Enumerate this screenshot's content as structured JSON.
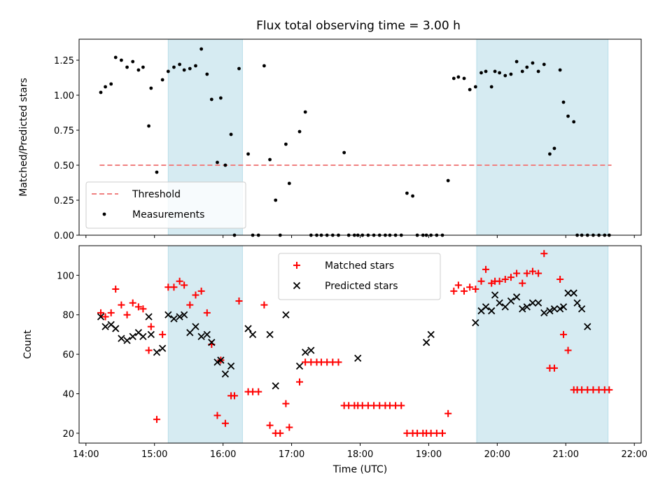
{
  "title": "Flux total observing time = 3.00 h",
  "chart_data": [
    {
      "type": "scatter",
      "ylabel": "Matched/Predicted stars",
      "xlim": [
        "14:00",
        "22:00"
      ],
      "ylim": [
        0,
        1.4
      ],
      "yticks": [
        "0.00",
        "0.25",
        "0.50",
        "0.75",
        "1.00",
        "1.25"
      ],
      "threshold": {
        "name": "Threshold",
        "value": 0.5,
        "x_range": [
          "14:12",
          "21:40"
        ],
        "color": "#f08080"
      },
      "shaded_intervals": [
        [
          "15:12",
          "16:17"
        ],
        [
          "19:42",
          "21:37"
        ]
      ],
      "series": [
        {
          "name": "Measurements",
          "color": "#000000",
          "x": [
            "14:13",
            "14:17",
            "14:22",
            "14:26",
            "14:31",
            "14:36",
            "14:41",
            "14:46",
            "14:50",
            "14:55",
            "14:57",
            "15:02",
            "15:07",
            "15:12",
            "15:17",
            "15:22",
            "15:26",
            "15:31",
            "15:36",
            "15:41",
            "15:46",
            "15:50",
            "15:55",
            "15:58",
            "16:02",
            "16:07",
            "16:10",
            "16:14",
            "16:22",
            "16:26",
            "16:31",
            "16:36",
            "16:41",
            "16:46",
            "16:50",
            "16:55",
            "16:58",
            "17:07",
            "17:12",
            "17:17",
            "17:22",
            "17:26",
            "17:31",
            "17:36",
            "17:41",
            "17:46",
            "17:50",
            "17:55",
            "17:58",
            "18:02",
            "18:07",
            "18:12",
            "18:17",
            "18:22",
            "18:26",
            "18:31",
            "18:36",
            "18:41",
            "18:46",
            "18:50",
            "18:55",
            "18:58",
            "19:02",
            "19:07",
            "19:12",
            "19:17",
            "19:22",
            "19:26",
            "19:31",
            "19:36",
            "19:41",
            "19:46",
            "19:50",
            "19:55",
            "19:58",
            "20:02",
            "20:07",
            "20:12",
            "20:17",
            "20:22",
            "20:26",
            "20:31",
            "20:36",
            "20:41",
            "20:46",
            "20:50",
            "20:55",
            "20:58",
            "21:02",
            "21:07",
            "21:10",
            "21:14",
            "21:19",
            "21:24",
            "21:29",
            "21:34",
            "21:38"
          ],
          "y": [
            1.02,
            1.06,
            1.08,
            1.27,
            1.25,
            1.2,
            1.24,
            1.18,
            1.2,
            0.78,
            1.05,
            0.45,
            1.11,
            1.17,
            1.2,
            1.22,
            1.18,
            1.19,
            1.21,
            1.33,
            1.15,
            0.97,
            0.52,
            0.98,
            0.5,
            0.72,
            0.0,
            1.19,
            0.58,
            0.0,
            0.0,
            1.21,
            0.54,
            0.25,
            0.0,
            0.65,
            0.37,
            0.74,
            0.88,
            0.0,
            0.0,
            0.0,
            0.0,
            0.0,
            0.0,
            0.59,
            0.0,
            0.0,
            0.0,
            0.0,
            0.0,
            0.0,
            0.0,
            0.0,
            0.0,
            0.0,
            0.0,
            0.3,
            0.28,
            0.0,
            0.0,
            0.0,
            0.0,
            0.0,
            0.0,
            0.39,
            1.12,
            1.13,
            1.12,
            1.04,
            1.06,
            1.16,
            1.17,
            1.06,
            1.17,
            1.16,
            1.14,
            1.15,
            1.24,
            1.17,
            1.2,
            1.23,
            1.17,
            1.22,
            0.58,
            0.62,
            1.18,
            0.95,
            0.85,
            0.81,
            0.0,
            0.0,
            0.0,
            0.0,
            0.0,
            0.0,
            0.0
          ]
        }
      ],
      "legend": "lower-left"
    },
    {
      "type": "scatter",
      "xlabel": "Time (UTC)",
      "ylabel": "Count",
      "xlim": [
        "14:00",
        "22:00"
      ],
      "xticks": [
        "14:00",
        "15:00",
        "16:00",
        "17:00",
        "18:00",
        "19:00",
        "20:00",
        "21:00",
        "22:00"
      ],
      "ylim": [
        15,
        115
      ],
      "yticks": [
        "20",
        "40",
        "60",
        "80",
        "100"
      ],
      "shaded_intervals": [
        [
          "15:12",
          "16:17"
        ],
        [
          "19:42",
          "21:37"
        ]
      ],
      "series": [
        {
          "name": "Matched stars",
          "color": "#ff0000",
          "marker": "plus",
          "x": [
            "14:13",
            "14:17",
            "14:22",
            "14:26",
            "14:31",
            "14:36",
            "14:41",
            "14:46",
            "14:50",
            "14:55",
            "14:57",
            "15:02",
            "15:07",
            "15:12",
            "15:17",
            "15:22",
            "15:26",
            "15:31",
            "15:36",
            "15:41",
            "15:46",
            "15:50",
            "15:55",
            "15:58",
            "16:02",
            "16:07",
            "16:10",
            "16:14",
            "16:22",
            "16:26",
            "16:31",
            "16:36",
            "16:41",
            "16:46",
            "16:50",
            "16:55",
            "16:58",
            "17:07",
            "17:12",
            "17:17",
            "17:22",
            "17:26",
            "17:31",
            "17:36",
            "17:41",
            "17:46",
            "17:50",
            "17:55",
            "17:58",
            "18:02",
            "18:07",
            "18:12",
            "18:17",
            "18:22",
            "18:26",
            "18:31",
            "18:36",
            "18:41",
            "18:46",
            "18:50",
            "18:55",
            "18:58",
            "19:02",
            "19:07",
            "19:12",
            "19:17",
            "19:22",
            "19:26",
            "19:31",
            "19:36",
            "19:41",
            "19:46",
            "19:50",
            "19:55",
            "19:58",
            "20:02",
            "20:07",
            "20:12",
            "20:17",
            "20:22",
            "20:26",
            "20:31",
            "20:36",
            "20:41",
            "20:46",
            "20:50",
            "20:55",
            "20:58",
            "21:02",
            "21:07",
            "21:10",
            "21:14",
            "21:19",
            "21:24",
            "21:29",
            "21:34",
            "21:38"
          ],
          "y": [
            81,
            79,
            81,
            93,
            85,
            80,
            86,
            84,
            83,
            62,
            74,
            27,
            70,
            94,
            94,
            97,
            95,
            85,
            90,
            92,
            81,
            65,
            29,
            57,
            25,
            39,
            39,
            87,
            41,
            41,
            41,
            85,
            24,
            20,
            20,
            35,
            23,
            46,
            56,
            56,
            56,
            56,
            56,
            56,
            56,
            34,
            34,
            34,
            34,
            34,
            34,
            34,
            34,
            34,
            34,
            34,
            34,
            20,
            20,
            20,
            20,
            20,
            20,
            20,
            20,
            30,
            92,
            95,
            92,
            94,
            93,
            97,
            103,
            96,
            97,
            97,
            98,
            99,
            101,
            96,
            101,
            102,
            101,
            111,
            53,
            53,
            98,
            70,
            62,
            42,
            42,
            42,
            42,
            42,
            42,
            42,
            42
          ]
        },
        {
          "name": "Predicted stars",
          "color": "#000000",
          "marker": "x",
          "x": [
            "14:13",
            "14:17",
            "14:22",
            "14:26",
            "14:31",
            "14:36",
            "14:41",
            "14:46",
            "14:50",
            "14:55",
            "14:57",
            "15:02",
            "15:07",
            "15:12",
            "15:17",
            "15:22",
            "15:26",
            "15:31",
            "15:36",
            "15:41",
            "15:46",
            "15:50",
            "15:55",
            "15:58",
            "16:02",
            "16:07",
            "16:22",
            "16:26",
            "16:41",
            "16:46",
            "16:55",
            "17:07",
            "17:12",
            "17:17",
            "17:58",
            "18:58",
            "19:02",
            "19:41",
            "19:46",
            "19:50",
            "19:55",
            "19:58",
            "20:02",
            "20:07",
            "20:12",
            "20:17",
            "20:22",
            "20:26",
            "20:31",
            "20:36",
            "20:41",
            "20:46",
            "20:50",
            "20:55",
            "20:58",
            "21:02",
            "21:07",
            "21:10",
            "21:14",
            "21:19"
          ],
          "y": [
            79,
            74,
            75,
            73,
            68,
            67,
            69,
            71,
            69,
            79,
            70,
            61,
            63,
            80,
            78,
            79,
            80,
            71,
            74,
            69,
            70,
            66,
            56,
            57,
            50,
            54,
            73,
            70,
            70,
            44,
            80,
            54,
            61,
            62,
            58,
            66,
            70,
            76,
            82,
            84,
            82,
            90,
            86,
            84,
            87,
            89,
            83,
            84,
            86,
            86,
            81,
            82,
            83,
            83,
            84,
            91,
            91,
            86,
            83,
            74
          ]
        }
      ],
      "legend": "upper-center"
    }
  ]
}
